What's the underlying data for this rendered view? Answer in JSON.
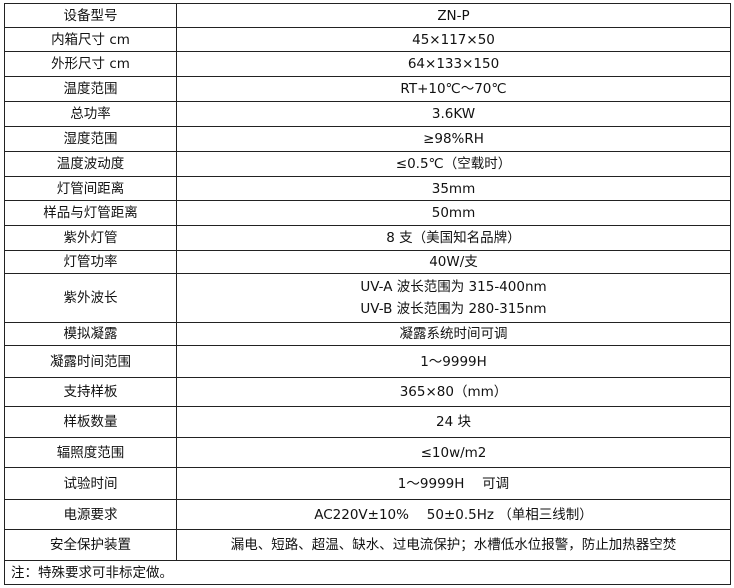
{
  "rows": [
    {
      "label": "设备型号",
      "value": "ZN-P"
    },
    {
      "label": "内箱尺寸 cm",
      "value": "45×117×50"
    },
    {
      "label": "外形尺寸 cm",
      "value": "64×133×150"
    },
    {
      "label": "温度范围",
      "value": "RT+10℃～70℃"
    },
    {
      "label": "总功率",
      "value": "3.6KW"
    },
    {
      "label": "湿度范围",
      "value": "≥98%RH"
    },
    {
      "label": "温度波动度",
      "value": "≤0.5℃（空载时）"
    },
    {
      "label": "灯管间距离",
      "value": "35mm"
    },
    {
      "label": "样品与灯管距离",
      "value": "50mm"
    },
    {
      "label": "紫外灯管",
      "value": "8 支（美国知名品牌）"
    },
    {
      "label": "灯管功率",
      "value": "40W/支"
    },
    {
      "label": "紫外波长",
      "value": "UV-A 波长范围为 315-400nm",
      "value2": "UV-B 波长范围为 280-315nm"
    },
    {
      "label": "模拟凝露",
      "value": "凝露系统时间可调"
    },
    {
      "label": "凝露时间范围",
      "value": "1～9999H"
    },
    {
      "label": "支持样板",
      "value": "365×80（mm）"
    },
    {
      "label": "样板数量",
      "value": "24 块"
    },
    {
      "label": "辐照度范围",
      "value": "≤10w/m2"
    },
    {
      "label": "试验时间",
      "value": "1～9999H　 可调"
    },
    {
      "label": "电源要求",
      "value": "AC220V±10%　 50±0.5Hz （单相三线制）"
    },
    {
      "label": "安全保护装置",
      "value": "漏电、短路、超温、缺水、过电流保护；水槽低水位报警，防止加热器空焚"
    }
  ],
  "note": "注：特殊要求可非标定做。"
}
